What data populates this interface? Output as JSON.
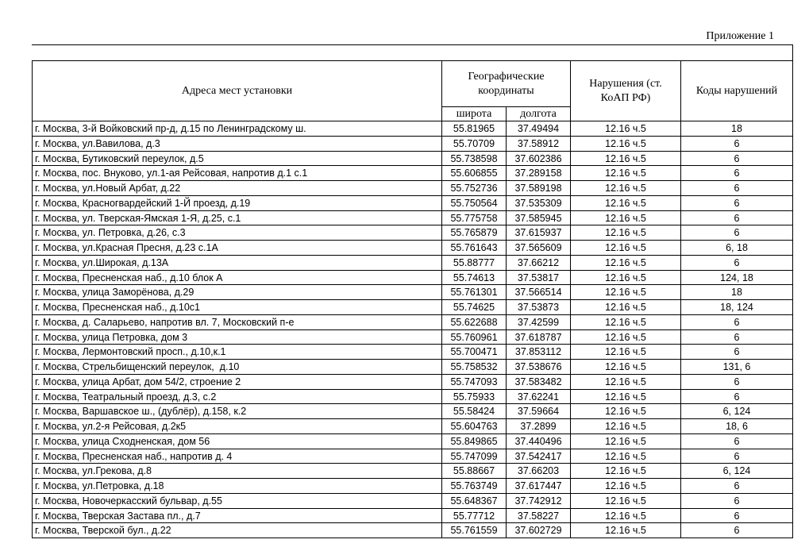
{
  "header": {
    "appendix": "Приложение 1"
  },
  "table": {
    "columns": {
      "address": "Адреса мест установки",
      "coords": "Географические координаты",
      "lat": "широта",
      "lon": "долгота",
      "violation": "Нарушения (ст. КоАП РФ)",
      "codes": "Коды нарушений"
    },
    "rows": [
      [
        "г. Москва, 3-й Войковский пр-д, д.15 по Ленинградскому ш.",
        "55.81965",
        "37.49494",
        "12.16 ч.5",
        "18"
      ],
      [
        "г. Москва, ул.Вавилова, д.3",
        "55.70709",
        "37.58912",
        "12.16 ч.5",
        "6"
      ],
      [
        "г. Москва, Бутиковский переулок, д.5",
        "55.738598",
        "37.602386",
        "12.16 ч.5",
        "6"
      ],
      [
        "г. Москва, пос. Внуково, ул.1-ая Рейсовая, напротив д.1 с.1",
        "55.606855",
        "37.289158",
        "12.16 ч.5",
        "6"
      ],
      [
        "г. Москва, ул.Новый Арбат, д.22",
        "55.752736",
        "37.589198",
        "12.16 ч.5",
        "6"
      ],
      [
        "г. Москва, Красногвардейский 1-Й проезд, д.19",
        "55.750564",
        "37.535309",
        "12.16 ч.5",
        "6"
      ],
      [
        "г. Москва, ул. Тверская-Ямская 1-Я, д.25, с.1",
        "55.775758",
        "37.585945",
        "12.16 ч.5",
        "6"
      ],
      [
        "г. Москва, ул. Петровка, д.26, с.3",
        "55.765879",
        "37.615937",
        "12.16 ч.5",
        "6"
      ],
      [
        "г. Москва, ул.Красная Пресня, д.23 с.1А",
        "55.761643",
        "37.565609",
        "12.16 ч.5",
        "6, 18"
      ],
      [
        "г. Москва, ул.Широкая, д.13А",
        "55.88777",
        "37.66212",
        "12.16 ч.5",
        "6"
      ],
      [
        "г. Москва, Пресненская наб., д.10 блок А",
        "55.74613",
        "37.53817",
        "12.16 ч.5",
        "124, 18"
      ],
      [
        "г. Москва, улица Заморёнова, д.29",
        "55.761301",
        "37.566514",
        "12.16 ч.5",
        "18"
      ],
      [
        "г. Москва, Пресненская наб., д.10с1",
        "55.74625",
        "37.53873",
        "12.16 ч.5",
        "18, 124"
      ],
      [
        "г. Москва, д. Саларьево, напротив вл. 7, Московский п-е",
        "55.622688",
        "37.42599",
        "12.16 ч.5",
        "6"
      ],
      [
        "г. Москва, улица Петровка, дом 3",
        "55.760961",
        "37.618787",
        "12.16 ч.5",
        "6"
      ],
      [
        "г. Москва, Лермонтовский просп., д.10,к.1",
        "55.700471",
        "37.853112",
        "12.16 ч.5",
        "6"
      ],
      [
        "г. Москва, Стрельбищенский переулок,  д.10",
        "55.758532",
        "37.538676",
        "12.16 ч.5",
        "131, 6"
      ],
      [
        "г. Москва, улица Арбат, дом 54/2, строение 2",
        "55.747093",
        "37.583482",
        "12.16 ч.5",
        "6"
      ],
      [
        "г. Москва, Театральный проезд, д.3, с.2",
        "55.75933",
        "37.62241",
        "12.16 ч.5",
        "6"
      ],
      [
        "г. Москва, Варшавское ш., (дублёр), д.158, к.2",
        "55.58424",
        "37.59664",
        "12.16 ч.5",
        "6, 124"
      ],
      [
        "г. Москва, ул.2-я Рейсовая, д.2к5",
        "55.604763",
        "37.2899",
        "12.16 ч.5",
        "18, 6"
      ],
      [
        "г. Москва, улица Сходненская, дом 56",
        "55.849865",
        "37.440496",
        "12.16 ч.5",
        "6"
      ],
      [
        "г. Москва, Пресненская наб., напротив д. 4",
        "55.747099",
        "37.542417",
        "12.16 ч.5",
        "6"
      ],
      [
        "г. Москва, ул.Грекова, д.8",
        "55.88667",
        "37.66203",
        "12.16 ч.5",
        "6, 124"
      ],
      [
        "г. Москва, ул.Петровка, д.18",
        "55.763749",
        "37.617447",
        "12.16 ч.5",
        "6"
      ],
      [
        "г. Москва, Новочеркасский бульвар, д.55",
        "55.648367",
        "37.742912",
        "12.16 ч.5",
        "6"
      ],
      [
        "г. Москва, Тверская Застава пл., д.7",
        "55.77712",
        "37.58227",
        "12.16 ч.5",
        "6"
      ],
      [
        "г. Москва, Тверской бул., д.22",
        "55.761559",
        "37.602729",
        "12.16 ч.5",
        "6"
      ]
    ]
  }
}
